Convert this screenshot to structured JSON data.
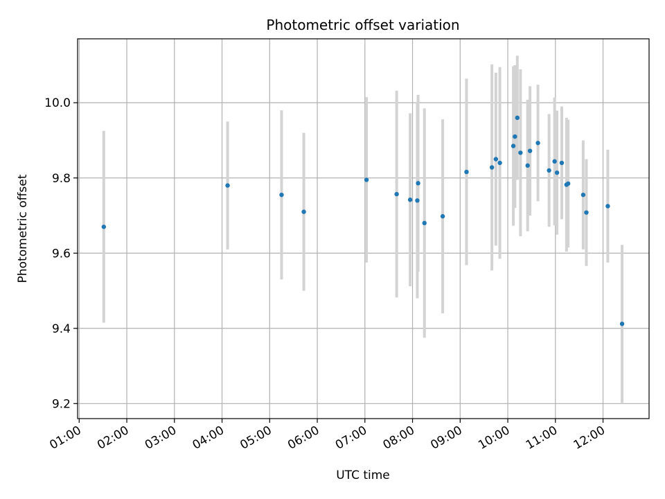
{
  "chart_data": {
    "type": "scatter",
    "title": "Photometric offset variation",
    "xlabel": "UTC time",
    "ylabel": "Photometric offset",
    "x_axis_kind": "time (hours UTC)",
    "xlim": [
      "00:58",
      "12:58"
    ],
    "ylim": [
      9.16,
      10.17
    ],
    "xticks": [
      "01:00",
      "02:00",
      "03:00",
      "04:00",
      "05:00",
      "06:00",
      "07:00",
      "08:00",
      "09:00",
      "10:00",
      "11:00",
      "12:00"
    ],
    "yticks": [
      9.2,
      9.4,
      9.6,
      9.8,
      10.0
    ],
    "ytick_labels": [
      "9.2",
      "9.4",
      "9.6",
      "9.8",
      "10.0"
    ],
    "grid": true,
    "legend": "none",
    "marker_color": "#1f77b4",
    "errorbar_color": "#d3d3d3",
    "points": [
      {
        "x": "01:31",
        "y": 9.67,
        "err": 0.255
      },
      {
        "x": "04:07",
        "y": 9.78,
        "err": 0.17
      },
      {
        "x": "05:15",
        "y": 9.755,
        "err": 0.225
      },
      {
        "x": "05:43",
        "y": 9.71,
        "err": 0.21
      },
      {
        "x": "07:02",
        "y": 9.795,
        "err": 0.22
      },
      {
        "x": "07:40",
        "y": 9.757,
        "err": 0.275
      },
      {
        "x": "07:57",
        "y": 9.742,
        "err": 0.23
      },
      {
        "x": "08:06",
        "y": 9.74,
        "err": 0.26
      },
      {
        "x": "08:07",
        "y": 9.786,
        "err": 0.235
      },
      {
        "x": "08:15",
        "y": 9.68,
        "err": 0.305
      },
      {
        "x": "08:38",
        "y": 9.698,
        "err": 0.258
      },
      {
        "x": "09:08",
        "y": 9.816,
        "err": 0.248
      },
      {
        "x": "09:40",
        "y": 9.828,
        "err": 0.274
      },
      {
        "x": "09:45",
        "y": 9.85,
        "err": 0.23
      },
      {
        "x": "09:50",
        "y": 9.84,
        "err": 0.255
      },
      {
        "x": "10:07",
        "y": 9.885,
        "err": 0.212
      },
      {
        "x": "10:09",
        "y": 9.91,
        "err": 0.19
      },
      {
        "x": "10:12",
        "y": 9.96,
        "err": 0.165
      },
      {
        "x": "10:16",
        "y": 9.867,
        "err": 0.222
      },
      {
        "x": "10:25",
        "y": 9.833,
        "err": 0.175
      },
      {
        "x": "10:28",
        "y": 9.872,
        "err": 0.172
      },
      {
        "x": "10:38",
        "y": 9.893,
        "err": 0.155
      },
      {
        "x": "10:52",
        "y": 9.82,
        "err": 0.15
      },
      {
        "x": "10:59",
        "y": 9.844,
        "err": 0.17
      },
      {
        "x": "11:02",
        "y": 9.814,
        "err": 0.165
      },
      {
        "x": "11:08",
        "y": 9.84,
        "err": 0.15
      },
      {
        "x": "11:14",
        "y": 9.782,
        "err": 0.178
      },
      {
        "x": "11:16",
        "y": 9.785,
        "err": 0.17
      },
      {
        "x": "11:35",
        "y": 9.755,
        "err": 0.145
      },
      {
        "x": "11:39",
        "y": 9.708,
        "err": 0.142
      },
      {
        "x": "12:06",
        "y": 9.725,
        "err": 0.15
      },
      {
        "x": "12:24",
        "y": 9.412,
        "err": 0.21
      }
    ]
  }
}
